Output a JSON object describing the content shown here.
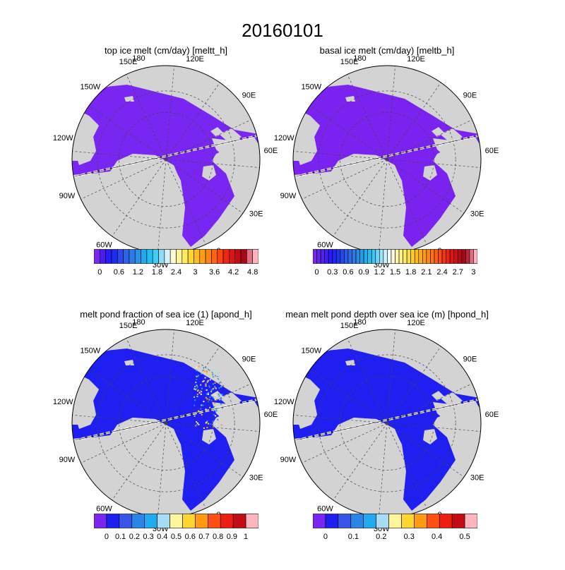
{
  "title": "20160101",
  "colors": {
    "land": "#d3d3d3",
    "ice_low_violet": "#7f25ee",
    "ice_low_blue": "#1e1ef0",
    "ocean": "#ffffff",
    "outline": "#000000"
  },
  "panels": [
    {
      "title": "top ice melt (cm/day)  [meltt_h]",
      "ice_color": "#7a26f2",
      "colorbar": {
        "colors": [
          "#7a26f2",
          "#4a1ef2",
          "#2a1cf6",
          "#1e2cf2",
          "#2a48ee",
          "#2e62ea",
          "#2a7ae8",
          "#2892e6",
          "#22a8ec",
          "#20bef2",
          "#40cdf4",
          "#8cddf7",
          "#d6f1fa",
          "#fffad2",
          "#fff59a",
          "#ffec60",
          "#ffd530",
          "#ffbc1c",
          "#ffa012",
          "#ff8410",
          "#ff6410",
          "#fc4310",
          "#ef2412",
          "#dc1414",
          "#c20c14",
          "#a80814",
          "#e66e82",
          "#ffb4be"
        ],
        "labels": [
          "0",
          "0.6",
          "1.2",
          "1.8",
          "2.4",
          "3",
          "3.6",
          "4.2",
          "4.8"
        ]
      }
    },
    {
      "title": "basal ice melt (cm/day)  [meltb_h]",
      "ice_color": "#7a22f0",
      "colorbar": {
        "colors": [
          "#7a26f2",
          "#6622f0",
          "#5220f2",
          "#3e1ef4",
          "#2a1cf6",
          "#1e26f4",
          "#1e36f0",
          "#2248ee",
          "#2a5aea",
          "#2c6ae8",
          "#2a7ae8",
          "#288ae6",
          "#249ce8",
          "#20aeee",
          "#22bef2",
          "#3ac8f4",
          "#6cd4f6",
          "#a0e2f8",
          "#cdeefa",
          "#eef8f6",
          "#fffbd8",
          "#fff7b0",
          "#fff288",
          "#ffea60",
          "#ffdc40",
          "#ffcc28",
          "#ffbc1c",
          "#ffac14",
          "#ff9a12",
          "#ff8810",
          "#ff7410",
          "#ff6010",
          "#fc4a10",
          "#f63410",
          "#ec2212",
          "#de1614",
          "#ce1014",
          "#ba0a14",
          "#a60814",
          "#b8283c",
          "#dc6e80",
          "#ffb4be"
        ],
        "labels": [
          "0",
          "0.3",
          "0.6",
          "0.9",
          "1.2",
          "1.5",
          "1.8",
          "2.1",
          "2.4",
          "2.7",
          "3"
        ]
      }
    },
    {
      "title": "melt pond fraction of sea ice (1)  [apond_h]",
      "ice_color": "#1f1ff2",
      "colorbar": {
        "colors": [
          "#7a26f2",
          "#1e1ef0",
          "#3a56ea",
          "#2a86e6",
          "#20aaef",
          "#a6dcf6",
          "#fff59a",
          "#ffd530",
          "#ff9a12",
          "#ff5010",
          "#ee1e12",
          "#c40c14",
          "#ffb4be"
        ],
        "labels": [
          "0",
          "0.1",
          "0.2",
          "0.3",
          "0.4",
          "0.5",
          "0.6",
          "0.7",
          "0.8",
          "0.9",
          "1"
        ]
      }
    },
    {
      "title": "mean melt pond depth over sea ice (m)  [hpond_h]",
      "ice_color": "#1f1ff2",
      "colorbar": {
        "colors": [
          "#7a26f2",
          "#1e1ef0",
          "#3a56ea",
          "#2a86e6",
          "#20aaef",
          "#a6dcf6",
          "#fff59a",
          "#ffd530",
          "#ff9a12",
          "#ff5010",
          "#ee1e12",
          "#c40c14",
          "#ffb4be"
        ],
        "labels": [
          "0",
          "0.1",
          "0.2",
          "0.3",
          "0.4",
          "0.5"
        ]
      }
    }
  ],
  "map_labels": {
    "top": [
      "150E",
      "120E"
    ],
    "right": [
      "90E",
      "60E",
      "30E"
    ],
    "bottom_right": [
      "0"
    ],
    "bottom": [
      "60W",
      "30W"
    ],
    "left": [
      "180",
      "150W",
      "120W",
      "90W"
    ]
  }
}
